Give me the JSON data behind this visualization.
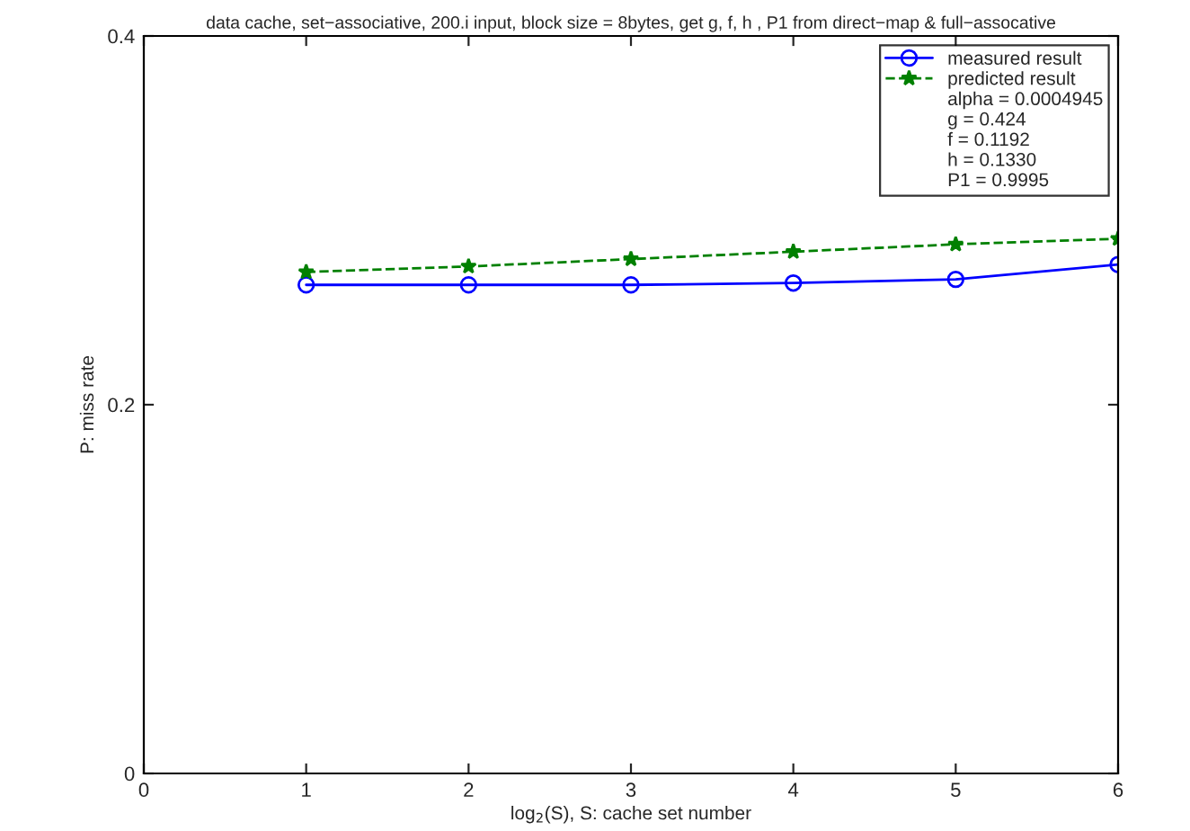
{
  "chart_data": {
    "type": "line",
    "title": "data cache, set−associative, 200.i input, block size = 8bytes, get g, f, h , P1 from direct−map & full−assocative",
    "xlabel": "log$_{2}$(S), S: cache set number",
    "ylabel": "P: miss rate",
    "x": [
      1,
      2,
      3,
      4,
      5,
      6
    ],
    "series": [
      {
        "name": "measured result",
        "color": "#0000ff",
        "marker": "circle",
        "line_style": "solid",
        "values": [
          0.265,
          0.265,
          0.265,
          0.266,
          0.268,
          0.276
        ]
      },
      {
        "name": "predicted result",
        "color": "#008000",
        "marker": "star",
        "line_style": "dashed",
        "values": [
          0.272,
          0.275,
          0.279,
          0.283,
          0.287,
          0.29
        ]
      }
    ],
    "annotations": [
      "alpha = 0.0004945",
      "g = 0.424",
      "f = 0.1192",
      "h = 0.1330",
      "P1 = 0.9995"
    ],
    "xlim": [
      0,
      6
    ],
    "xticks": [
      0,
      1,
      2,
      3,
      4,
      5,
      6
    ],
    "ylim": [
      0,
      0.4
    ],
    "yticks": [
      0,
      0.2,
      0.4
    ],
    "grid": false,
    "legend": "top right"
  }
}
